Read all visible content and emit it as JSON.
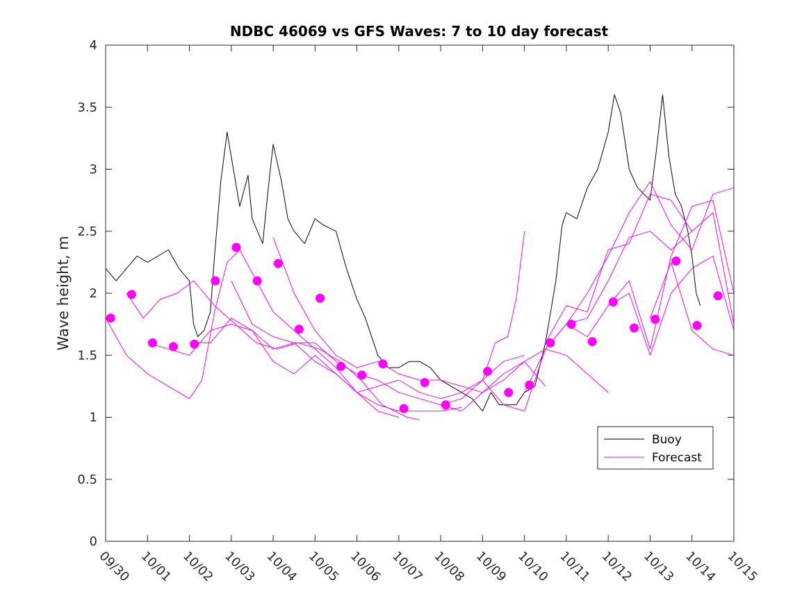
{
  "chart_data": {
    "type": "line",
    "title": "NDBC 46069 vs GFS Waves: 7 to 10 day forecast",
    "xlabel": "",
    "ylabel": "Wave height, m",
    "xlim": [
      0,
      15
    ],
    "ylim": [
      0,
      4
    ],
    "x_ticks": [
      0,
      1,
      2,
      3,
      4,
      5,
      6,
      7,
      8,
      9,
      10,
      11,
      12,
      13,
      14,
      15
    ],
    "x_tick_labels": [
      "09/30",
      "10/01",
      "10/02",
      "10/03",
      "10/04",
      "10/05",
      "10/06",
      "10/07",
      "10/08",
      "10/09",
      "10/10",
      "10/11",
      "10/12",
      "10/13",
      "10/14",
      "10/15"
    ],
    "y_ticks": [
      0,
      0.5,
      1,
      1.5,
      2,
      2.5,
      3,
      3.5,
      4
    ],
    "y_tick_labels": [
      "0",
      "0.5",
      "1",
      "1.5",
      "2",
      "2.5",
      "3",
      "3.5",
      "4"
    ],
    "legend": {
      "position": "lower-right",
      "entries": [
        "Buoy",
        "Forecast"
      ]
    },
    "colors": {
      "buoy": "#000000",
      "forecast": "#ff00ff"
    },
    "series": [
      {
        "name": "Buoy",
        "kind": "line",
        "x": [
          0,
          0.25,
          0.5,
          0.75,
          1,
          1.25,
          1.5,
          1.75,
          2,
          2.1,
          2.2,
          2.35,
          2.5,
          2.6,
          2.75,
          2.9,
          3,
          3.2,
          3.4,
          3.5,
          3.75,
          3.9,
          4,
          4.2,
          4.35,
          4.5,
          4.75,
          5,
          5.2,
          5.5,
          5.75,
          6,
          6.2,
          6.5,
          6.75,
          7,
          7.25,
          7.5,
          7.75,
          8,
          8.25,
          8.5,
          8.75,
          9,
          9.2,
          9.4,
          9.6,
          9.8,
          10,
          10.25,
          10.5,
          10.75,
          10.9,
          11,
          11.25,
          11.5,
          11.75,
          12,
          12.15,
          12.3,
          12.5,
          12.7,
          13,
          13.15,
          13.3,
          13.45,
          13.6,
          13.75,
          13.9,
          14,
          14.1,
          14.2
        ],
        "y": [
          2.2,
          2.1,
          2.2,
          2.3,
          2.25,
          2.3,
          2.35,
          2.2,
          2.1,
          1.75,
          1.65,
          1.7,
          1.85,
          2.3,
          2.9,
          3.3,
          3.1,
          2.7,
          2.95,
          2.6,
          2.4,
          2.9,
          3.2,
          2.9,
          2.6,
          2.5,
          2.4,
          2.6,
          2.55,
          2.5,
          2.2,
          1.95,
          1.8,
          1.5,
          1.4,
          1.4,
          1.45,
          1.45,
          1.4,
          1.3,
          1.25,
          1.2,
          1.15,
          1.05,
          1.2,
          1.1,
          1.1,
          1.1,
          1.2,
          1.25,
          1.6,
          2.1,
          2.55,
          2.65,
          2.6,
          2.85,
          3.0,
          3.3,
          3.6,
          3.45,
          3.0,
          2.85,
          2.75,
          3.15,
          3.6,
          3.1,
          2.8,
          2.7,
          2.5,
          2.3,
          2.0,
          1.9
        ]
      },
      {
        "name": "Forecast",
        "kind": "line",
        "x": [
          0,
          0.5,
          1,
          1.5,
          2,
          2.3,
          2.6,
          2.9,
          3.2,
          3.6,
          4,
          4.5,
          5,
          5.5,
          6,
          6.5,
          7
        ],
        "y": [
          1.8,
          1.5,
          1.35,
          1.25,
          1.15,
          1.3,
          1.85,
          2.25,
          2.35,
          2.1,
          1.85,
          1.7,
          1.55,
          1.4,
          1.2,
          1.05,
          1.0
        ]
      },
      {
        "name": "Forecast",
        "kind": "line",
        "x": [
          0.5,
          0.9,
          1.3,
          1.7,
          2.1,
          2.6,
          3.1,
          3.6,
          4.1,
          4.6,
          5.1,
          5.6,
          6.1,
          6.6,
          7.2,
          7.5
        ],
        "y": [
          2.0,
          1.8,
          1.95,
          2.0,
          2.1,
          1.9,
          1.75,
          1.6,
          1.55,
          1.6,
          1.55,
          1.45,
          1.3,
          1.1,
          1.0,
          0.98
        ]
      },
      {
        "name": "Forecast",
        "kind": "line",
        "x": [
          1,
          1.5,
          2,
          2.5,
          3,
          3.5,
          4,
          4.5,
          5,
          5.5,
          6,
          6.5,
          7,
          7.5,
          8,
          8.5
        ],
        "y": [
          1.6,
          1.55,
          1.5,
          1.7,
          1.75,
          1.7,
          1.55,
          1.6,
          1.45,
          1.35,
          1.2,
          1.1,
          1.05,
          1.05,
          1.05,
          1.08
        ]
      },
      {
        "name": "Forecast",
        "kind": "line",
        "x": [
          2,
          2.5,
          3,
          3.5,
          4,
          4.5,
          5,
          5.5,
          6,
          6.5,
          7,
          7.5,
          8,
          8.5,
          9,
          9.5,
          10
        ],
        "y": [
          1.6,
          1.6,
          1.8,
          1.7,
          1.45,
          1.35,
          1.5,
          1.35,
          1.2,
          1.25,
          1.3,
          1.2,
          1.15,
          1.2,
          1.3,
          1.45,
          1.5
        ]
      },
      {
        "name": "Forecast",
        "kind": "line",
        "x": [
          3,
          3.5,
          4,
          4.5,
          5,
          5.5,
          6,
          6.5,
          7,
          7.5,
          8,
          8.5,
          9,
          9.5,
          10,
          10.5
        ],
        "y": [
          2.1,
          1.75,
          1.65,
          1.6,
          1.6,
          1.45,
          1.35,
          1.3,
          1.2,
          1.15,
          1.1,
          1.05,
          1.2,
          1.35,
          1.45,
          1.25
        ]
      },
      {
        "name": "Forecast",
        "kind": "line",
        "x": [
          4,
          4.5,
          5,
          5.5,
          6,
          6.5,
          7,
          7.5,
          8,
          8.5,
          9,
          9.5,
          10,
          10.5,
          11,
          11.5,
          12
        ],
        "y": [
          2.45,
          2.0,
          1.7,
          1.5,
          1.4,
          1.45,
          1.35,
          1.3,
          1.3,
          1.25,
          1.2,
          1.3,
          1.45,
          1.55,
          1.5,
          1.35,
          1.2
        ]
      },
      {
        "name": "Forecast",
        "kind": "line",
        "x": [
          8,
          8.5,
          9,
          9.3,
          9.6,
          9.8,
          10
        ],
        "y": [
          1.1,
          1.15,
          1.3,
          1.6,
          1.65,
          1.95,
          2.5
        ]
      },
      {
        "name": "Forecast",
        "kind": "line",
        "x": [
          9,
          9.5,
          10,
          10.5,
          11,
          11.5,
          12,
          12.5,
          13,
          13.5,
          14
        ],
        "y": [
          1.3,
          1.1,
          1.05,
          1.55,
          1.75,
          1.8,
          2.1,
          2.45,
          2.5,
          2.35,
          2.5
        ]
      },
      {
        "name": "Forecast",
        "kind": "line",
        "x": [
          10,
          10.5,
          11,
          11.5,
          12,
          12.5,
          13,
          13.5,
          14,
          14.5,
          15
        ],
        "y": [
          1.2,
          1.55,
          1.75,
          2.0,
          2.3,
          2.65,
          2.9,
          2.55,
          2.35,
          2.8,
          2.85
        ]
      },
      {
        "name": "Forecast",
        "kind": "line",
        "x": [
          10.5,
          11,
          11.5,
          12,
          12.5,
          13,
          13.5,
          14,
          14.5,
          15
        ],
        "y": [
          1.6,
          1.9,
          1.85,
          2.35,
          2.4,
          2.8,
          2.75,
          2.5,
          2.65,
          1.75
        ]
      },
      {
        "name": "Forecast",
        "kind": "line",
        "x": [
          11,
          11.5,
          12,
          12.5,
          13,
          13.5,
          14,
          14.5,
          15
        ],
        "y": [
          1.75,
          1.65,
          1.9,
          2.0,
          1.5,
          2.0,
          2.2,
          2.3,
          1.7
        ]
      },
      {
        "name": "Forecast",
        "kind": "line",
        "x": [
          12,
          12.5,
          13,
          13.5,
          14,
          14.5,
          15
        ],
        "y": [
          1.9,
          2.1,
          1.55,
          2.3,
          2.7,
          2.75,
          2.0
        ]
      },
      {
        "name": "Forecast",
        "kind": "line",
        "x": [
          13,
          13.5,
          14,
          14.5,
          15
        ],
        "y": [
          1.8,
          2.25,
          1.7,
          1.55,
          1.5
        ]
      },
      {
        "name": "Forecast",
        "kind": "markers",
        "x": [
          0.12,
          0.62,
          1.12,
          1.62,
          2.12,
          2.62,
          3.12,
          3.62,
          4.12,
          4.62,
          5.12,
          5.62,
          6.12,
          6.62,
          7.12,
          7.62,
          8.12,
          8.62,
          9.12,
          9.62,
          10.12,
          10.62,
          11.12,
          11.62,
          12.12,
          12.62,
          13.12,
          13.62,
          14.12,
          14.62
        ],
        "y": [
          1.8,
          1.99,
          1.6,
          1.57,
          1.59,
          2.1,
          2.37,
          2.1,
          2.24,
          1.71,
          1.96,
          1.41,
          1.34,
          1.43,
          1.07,
          1.28,
          1.1,
          null,
          1.37,
          1.2,
          1.26,
          1.6,
          1.75,
          1.61,
          1.93,
          1.72,
          1.79,
          2.26,
          1.74,
          1.98
        ]
      }
    ]
  }
}
